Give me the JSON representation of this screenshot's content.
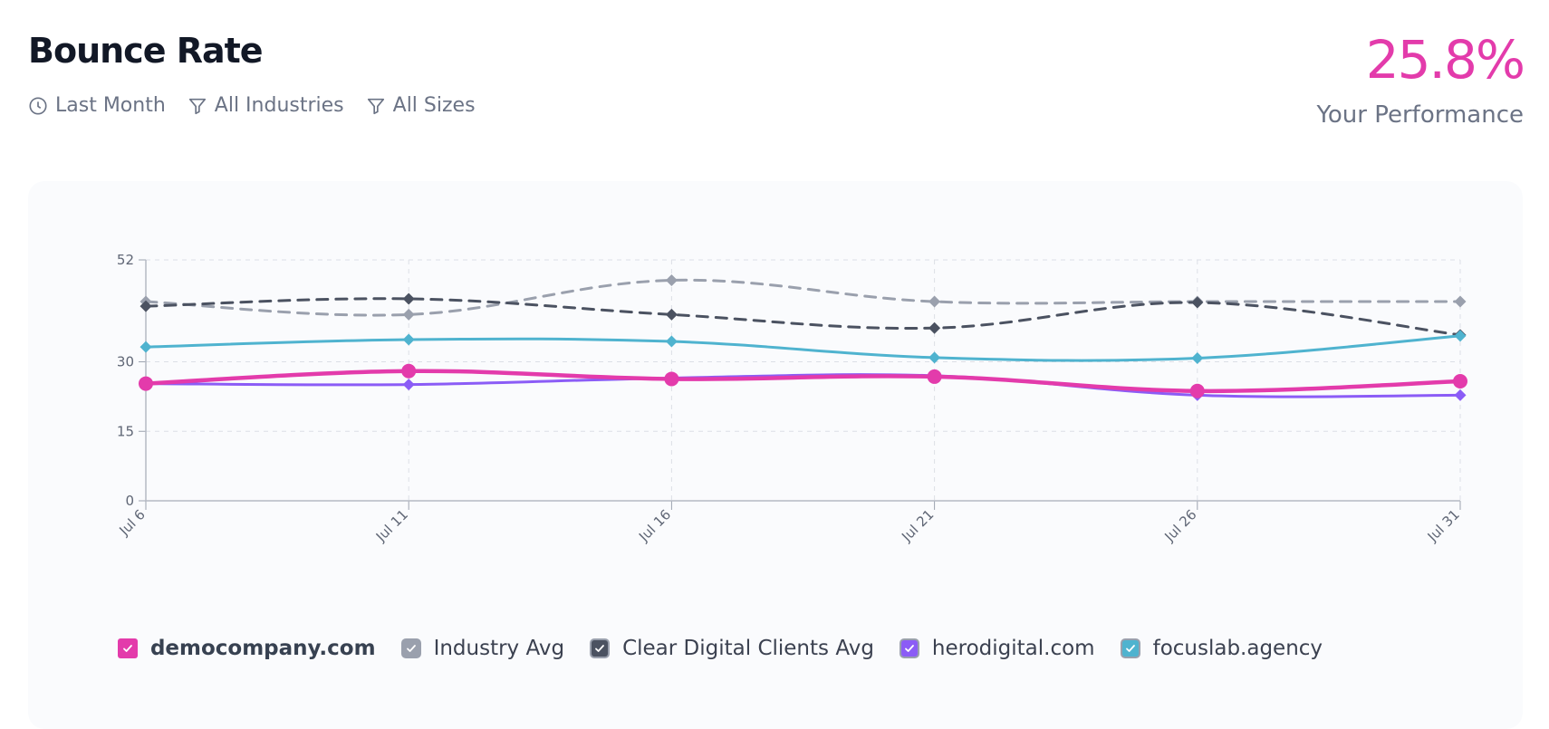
{
  "header": {
    "title": "Bounce Rate",
    "filters": [
      {
        "label": "Last Month",
        "icon": "clock-icon"
      },
      {
        "label": "All Industries",
        "icon": "filter-icon"
      },
      {
        "label": "All Sizes",
        "icon": "filter-icon"
      }
    ],
    "performance_value": "25.8%",
    "performance_label": "Your Performance"
  },
  "colors": {
    "accent": "#e33bab",
    "text_muted": "#6b7385"
  },
  "chart_data": {
    "type": "line",
    "categories": [
      "Jul 6",
      "Jul 11",
      "Jul 16",
      "Jul 21",
      "Jul 26",
      "Jul 31"
    ],
    "yticks": [
      0,
      15,
      30,
      52
    ],
    "ylim": [
      0,
      52
    ],
    "grid": true,
    "legend_position": "bottom",
    "series": [
      {
        "name": "democompany.com",
        "color": "#e33bab",
        "dashed": false,
        "marker": "circle",
        "values": [
          25.3,
          28.0,
          26.3,
          26.8,
          23.7,
          25.8
        ]
      },
      {
        "name": "Industry Avg",
        "color": "#9aa0ad",
        "dashed": true,
        "marker": "diamond",
        "values": [
          43.0,
          40.2,
          47.6,
          43.0,
          43.0,
          43.0
        ]
      },
      {
        "name": "Clear Digital Clients Avg",
        "color": "#4b5261",
        "dashed": true,
        "marker": "diamond",
        "values": [
          42.0,
          43.6,
          40.2,
          37.3,
          42.8,
          35.8
        ]
      },
      {
        "name": "herodigital.com",
        "color": "#8b5cf6",
        "dashed": false,
        "marker": "diamond",
        "values": [
          25.3,
          25.1,
          26.5,
          27.0,
          22.8,
          22.8
        ]
      },
      {
        "name": "focuslab.agency",
        "color": "#4fb3cf",
        "dashed": false,
        "marker": "diamond",
        "values": [
          33.2,
          34.8,
          34.4,
          30.9,
          30.8,
          35.6
        ]
      }
    ]
  }
}
